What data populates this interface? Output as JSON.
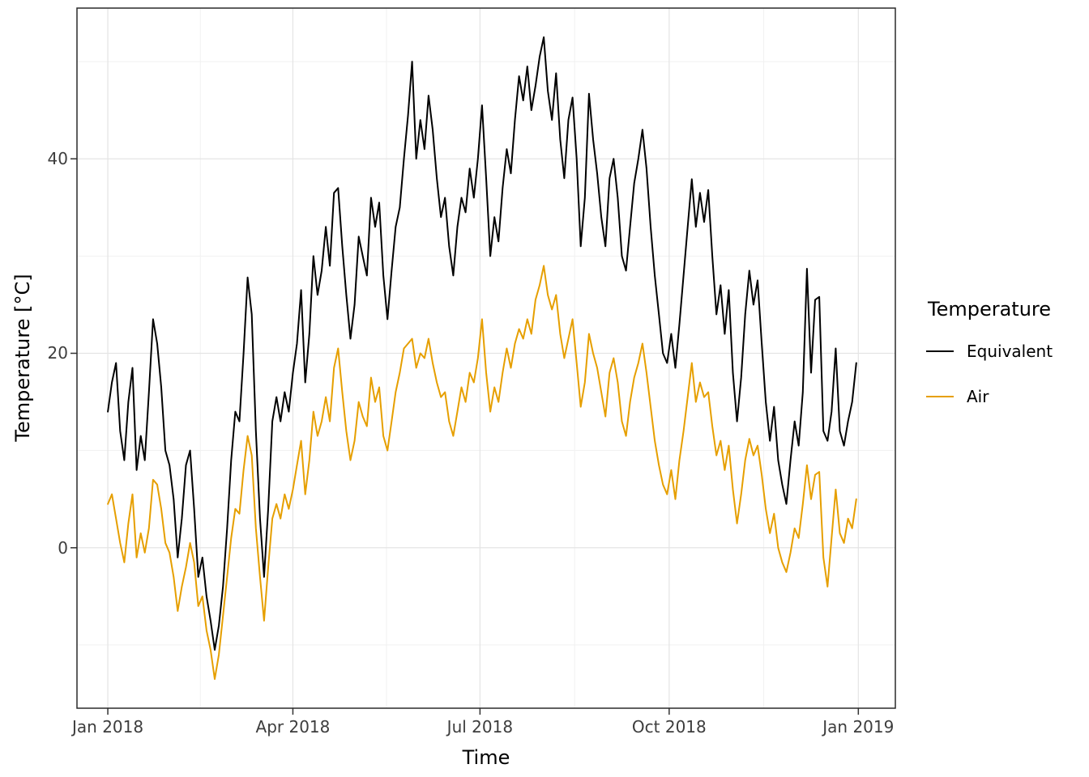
{
  "chart_data": {
    "type": "line",
    "title": "",
    "xlabel": "Time",
    "ylabel": "Temperature [°C]",
    "x_unit": "days since 2018-01-01",
    "x_domain": [
      -15,
      383
    ],
    "y_domain": [
      -16.5,
      55.5
    ],
    "grid": true,
    "x_ticks": [
      {
        "day": 0,
        "label": "Jan 2018"
      },
      {
        "day": 90,
        "label": "Apr 2018"
      },
      {
        "day": 181,
        "label": "Jul 2018"
      },
      {
        "day": 273,
        "label": "Oct 2018"
      },
      {
        "day": 365,
        "label": "Jan 2019"
      }
    ],
    "x_minor_gridlines_days": [
      45,
      135.5,
      227,
      319
    ],
    "y_ticks": [
      {
        "value": 0,
        "label": "0"
      },
      {
        "value": 20,
        "label": "20"
      },
      {
        "value": 40,
        "label": "40"
      }
    ],
    "y_minor_gridlines": [
      -10,
      10,
      30,
      50
    ],
    "legend": {
      "title": "Temperature",
      "position": "right",
      "entries": [
        {
          "label": "Equivalent",
          "color": "#000000"
        },
        {
          "label": "Air",
          "color": "#E69F00"
        }
      ]
    },
    "x_days": [
      0,
      2,
      4,
      6,
      8,
      10,
      12,
      14,
      16,
      18,
      20,
      22,
      24,
      26,
      28,
      30,
      32,
      34,
      36,
      38,
      40,
      42,
      44,
      46,
      48,
      50,
      52,
      54,
      56,
      58,
      60,
      62,
      64,
      66,
      68,
      70,
      72,
      74,
      76,
      78,
      80,
      82,
      84,
      86,
      88,
      90,
      92,
      94,
      96,
      98,
      100,
      102,
      104,
      106,
      108,
      110,
      112,
      114,
      116,
      118,
      120,
      122,
      124,
      126,
      128,
      130,
      132,
      134,
      136,
      138,
      140,
      142,
      144,
      146,
      148,
      150,
      152,
      154,
      156,
      158,
      160,
      162,
      164,
      166,
      168,
      170,
      172,
      174,
      176,
      178,
      180,
      182,
      184,
      186,
      188,
      190,
      192,
      194,
      196,
      198,
      200,
      202,
      204,
      206,
      208,
      210,
      212,
      214,
      216,
      218,
      220,
      222,
      224,
      226,
      228,
      230,
      232,
      234,
      236,
      238,
      240,
      242,
      244,
      246,
      248,
      250,
      252,
      254,
      256,
      258,
      260,
      262,
      264,
      266,
      268,
      270,
      272,
      274,
      276,
      278,
      280,
      282,
      284,
      286,
      288,
      290,
      292,
      294,
      296,
      298,
      300,
      302,
      304,
      306,
      308,
      310,
      312,
      314,
      316,
      318,
      320,
      322,
      324,
      326,
      328,
      330,
      332,
      334,
      336,
      338,
      340,
      342,
      344,
      346,
      348,
      350,
      352,
      354,
      356,
      358,
      360,
      362,
      364
    ],
    "series": [
      {
        "name": "Equivalent",
        "color": "#000000",
        "values": [
          14,
          17,
          19,
          12,
          9,
          15,
          18.5,
          8,
          11.5,
          9,
          16,
          23.5,
          21,
          16.5,
          10,
          8.5,
          5,
          -1,
          3,
          8.5,
          10,
          4,
          -3,
          -1,
          -5,
          -7.5,
          -10.5,
          -8,
          -4,
          2,
          9,
          14,
          13,
          20,
          27.8,
          24,
          12,
          3,
          -3,
          4,
          13,
          15.5,
          13,
          16,
          14,
          18,
          21,
          26.5,
          17,
          22,
          30,
          26,
          28.5,
          33,
          29,
          36.5,
          37,
          31,
          26,
          21.5,
          25,
          32,
          30,
          28,
          36,
          33,
          35.5,
          28,
          23.5,
          28.5,
          33,
          35,
          40,
          44.5,
          50,
          40,
          44,
          41,
          46.5,
          43,
          38,
          34,
          36,
          31,
          28,
          33,
          36,
          34.5,
          39,
          36,
          40,
          45.5,
          38,
          30,
          34,
          31.5,
          37,
          41,
          38.5,
          44,
          48.5,
          46,
          49.5,
          45,
          47.5,
          50.5,
          52.5,
          47,
          44,
          48.8,
          42,
          38,
          44,
          46.3,
          40,
          31,
          36,
          46.7,
          42,
          38.5,
          34,
          31,
          38,
          40,
          36,
          30,
          28.5,
          33,
          37.5,
          40,
          43,
          39,
          33,
          28,
          24,
          20,
          19,
          22,
          18.5,
          23,
          28,
          33,
          37.9,
          33,
          36.5,
          33.5,
          36.8,
          30,
          24,
          27,
          22,
          26.5,
          18,
          13,
          17.5,
          24,
          28.5,
          25,
          27.5,
          21,
          15,
          11,
          14.5,
          9,
          6.5,
          4.5,
          9,
          13,
          10.5,
          16,
          28.7,
          18,
          25.5,
          25.8,
          12,
          11,
          14,
          20.5,
          12,
          10.5,
          13,
          15,
          19
        ]
      },
      {
        "name": "Air",
        "color": "#E69F00",
        "values": [
          4.5,
          5.5,
          3,
          0.5,
          -1.5,
          2.5,
          5.5,
          -1,
          1.5,
          -0.5,
          2,
          7,
          6.5,
          4,
          0.5,
          -0.5,
          -3,
          -6.5,
          -4,
          -2,
          0.5,
          -1.5,
          -6,
          -5,
          -8.5,
          -10.5,
          -13.5,
          -11,
          -7,
          -3,
          1,
          4,
          3.5,
          8,
          11.5,
          9.5,
          2,
          -3,
          -7.5,
          -2,
          3,
          4.5,
          3,
          5.5,
          4,
          6,
          8.5,
          11,
          5.5,
          9,
          14,
          11.5,
          13,
          15.5,
          13,
          18.5,
          20.5,
          16,
          12,
          9,
          11,
          15,
          13.5,
          12.5,
          17.5,
          15,
          16.5,
          11.5,
          10,
          13,
          16,
          18,
          20.5,
          21,
          21.5,
          18.5,
          20,
          19.5,
          21.5,
          19,
          17,
          15.5,
          16,
          13,
          11.5,
          14,
          16.5,
          15,
          18,
          17,
          19.5,
          23.5,
          18,
          14,
          16.5,
          15,
          18,
          20.5,
          18.5,
          21,
          22.5,
          21.5,
          23.5,
          22,
          25.5,
          27,
          29,
          26,
          24.5,
          26,
          22,
          19.5,
          21.5,
          23.5,
          19,
          14.5,
          17,
          22,
          20,
          18.5,
          16,
          13.5,
          18,
          19.5,
          17,
          13,
          11.5,
          15,
          17.5,
          19,
          21,
          18,
          14.5,
          11,
          8.5,
          6.5,
          5.5,
          8,
          5,
          9,
          12,
          15.5,
          19,
          15,
          17,
          15.5,
          16,
          12.5,
          9.5,
          11,
          8,
          10.5,
          6,
          2.5,
          5.5,
          9,
          11.2,
          9.5,
          10.5,
          7.5,
          4,
          1.5,
          3.5,
          0,
          -1.5,
          -2.5,
          -0.5,
          2,
          1,
          4.5,
          8.5,
          5,
          7.5,
          7.8,
          -1,
          -4,
          1,
          6,
          1.5,
          0.5,
          3,
          2,
          5
        ]
      }
    ]
  }
}
